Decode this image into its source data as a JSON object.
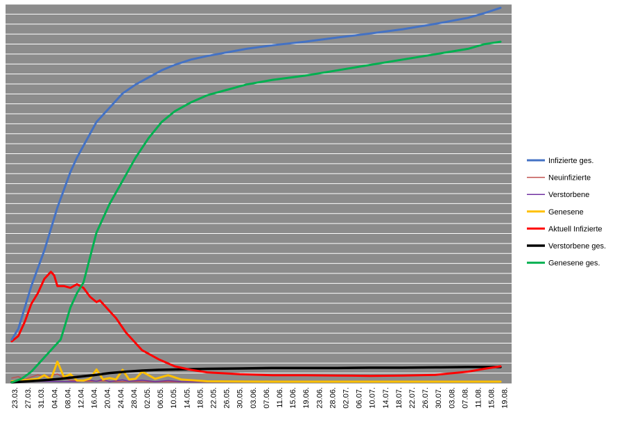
{
  "chart_data": {
    "type": "line",
    "title": "",
    "xlabel": "",
    "ylabel": "",
    "grid": true,
    "plot_background": "#8c8c8c",
    "gridline_color": "#ffffff",
    "gridline_count": 38,
    "legend_position": "right",
    "x_tick_labels": [
      "23.03.",
      "27.03.",
      "31.03.",
      "04.04.",
      "08.04.",
      "12.04.",
      "16.04.",
      "20.04.",
      "24.04.",
      "28.04.",
      "02.05.",
      "06.05.",
      "10.05.",
      "14.05.",
      "18.05.",
      "22.05.",
      "26.05.",
      "30.05.",
      "03.06.",
      "07.06.",
      "11.06.",
      "15.06.",
      "19.06.",
      "23.06.",
      "28.06.",
      "02.07.",
      "06.07.",
      "10.07.",
      "14.07.",
      "18.07.",
      "22.07.",
      "26.07.",
      "30.07.",
      "03.08.",
      "07.08.",
      "11.08.",
      "15.08.",
      "19.08."
    ],
    "y_range": [
      0,
      100
    ],
    "y_note": "y axis unlabeled; values are relative to plot height",
    "x_range": [
      0,
      150
    ],
    "series": [
      {
        "name": "Infizierte ges.",
        "color": "#4472c4",
        "width": 3,
        "x": [
          0,
          2,
          4,
          6,
          8,
          10,
          12,
          14,
          16,
          18,
          20,
          23,
          26,
          30,
          34,
          38,
          42,
          46,
          50,
          55,
          60,
          66,
          72,
          80,
          90,
          100,
          110,
          120,
          130,
          140,
          145,
          150
        ],
        "y": [
          12,
          15,
          21,
          27,
          32,
          37,
          43,
          49,
          54,
          59,
          63,
          68,
          73,
          77,
          81,
          83.5,
          85.5,
          87.5,
          89,
          90.5,
          91.5,
          92.5,
          93.5,
          94.5,
          95.5,
          96.7,
          97.8,
          99,
          100.5,
          102.2,
          103.5,
          105
        ]
      },
      {
        "name": "Neuinfizierte",
        "color": "#c0504d",
        "width": 1.5,
        "x": [
          0,
          2,
          4,
          6,
          8,
          10,
          12,
          14,
          16,
          18,
          20,
          24,
          28,
          32,
          36,
          40,
          50,
          60,
          80,
          100,
          120,
          150
        ],
        "y": [
          1.2,
          1.6,
          0.8,
          1.5,
          2.1,
          1.6,
          1.8,
          2.4,
          1.2,
          0.6,
          0.4,
          0.3,
          0.4,
          0.2,
          0.3,
          0.2,
          0.15,
          0.1,
          0.1,
          0.1,
          0.1,
          0.15
        ]
      },
      {
        "name": "Verstorbene",
        "color": "#7030a0",
        "width": 1.5,
        "x": [
          0,
          10,
          20,
          24,
          26,
          28,
          30,
          34,
          36,
          40,
          44,
          48,
          52,
          60,
          80,
          150
        ],
        "y": [
          0.1,
          0.3,
          0.2,
          0.6,
          0.3,
          0.8,
          0.2,
          0.7,
          0.3,
          0.6,
          0.2,
          0.5,
          0.2,
          0.1,
          0.1,
          0.1
        ]
      },
      {
        "name": "Genesene",
        "color": "#ffc000",
        "width": 3,
        "x": [
          0,
          4,
          8,
          10,
          12,
          14,
          16,
          18,
          20,
          22,
          24,
          26,
          28,
          30,
          32,
          34,
          36,
          38,
          40,
          44,
          48,
          52,
          60,
          80,
          150
        ],
        "y": [
          0.3,
          0.6,
          1.0,
          2.0,
          0.8,
          5.8,
          1.5,
          2.3,
          0.5,
          0.5,
          1.0,
          3.6,
          0.8,
          1.2,
          0.8,
          3.5,
          0.8,
          1.0,
          3.0,
          1.0,
          2.0,
          0.8,
          0.3,
          0.2,
          0.2
        ]
      },
      {
        "name": "Aktuell Infizierte",
        "color": "#ff0000",
        "width": 3,
        "x": [
          0,
          2,
          4,
          6,
          8,
          10,
          12,
          13,
          14,
          16,
          18,
          20,
          22,
          24,
          26,
          27,
          28,
          30,
          32,
          35,
          40,
          45,
          50,
          55,
          60,
          70,
          80,
          90,
          100,
          110,
          120,
          130,
          140,
          145,
          150
        ],
        "y": [
          11.5,
          13,
          17,
          22,
          25,
          29,
          31,
          30,
          27,
          27,
          26.5,
          27.5,
          26.5,
          24,
          22.5,
          23,
          22,
          20,
          18,
          14,
          9,
          6.5,
          4.5,
          3.5,
          2.8,
          2.3,
          2.0,
          2.0,
          1.9,
          1.8,
          1.9,
          2.1,
          3.0,
          3.8,
          4.5
        ]
      },
      {
        "name": "Verstorbene ges.",
        "color": "#000000",
        "width": 3.5,
        "x": [
          0,
          5,
          10,
          15,
          20,
          25,
          30,
          35,
          40,
          45,
          50,
          55,
          60,
          70,
          80,
          90,
          100,
          110,
          120,
          130,
          140,
          150
        ],
        "y": [
          0,
          0.3,
          0.6,
          1.0,
          1.5,
          2.0,
          2.6,
          3.0,
          3.3,
          3.5,
          3.6,
          3.7,
          3.8,
          3.9,
          4.0,
          4.0,
          4.0,
          4.1,
          4.1,
          4.2,
          4.3,
          4.3
        ]
      },
      {
        "name": "Genesene ges.",
        "color": "#00b050",
        "width": 3,
        "x": [
          0,
          3,
          6,
          9,
          12,
          15,
          18,
          20,
          22,
          24,
          26,
          30,
          34,
          38,
          42,
          46,
          50,
          55,
          60,
          66,
          72,
          80,
          90,
          100,
          110,
          120,
          130,
          140,
          145,
          150
        ],
        "y": [
          0,
          1,
          3,
          6,
          9,
          12,
          21,
          25,
          28,
          35,
          42,
          50,
          56.5,
          63,
          68.5,
          73,
          76,
          78.5,
          80.5,
          82,
          83.5,
          84.8,
          86,
          87.5,
          89,
          90.5,
          92,
          93.5,
          94.8,
          95.5
        ]
      }
    ]
  }
}
